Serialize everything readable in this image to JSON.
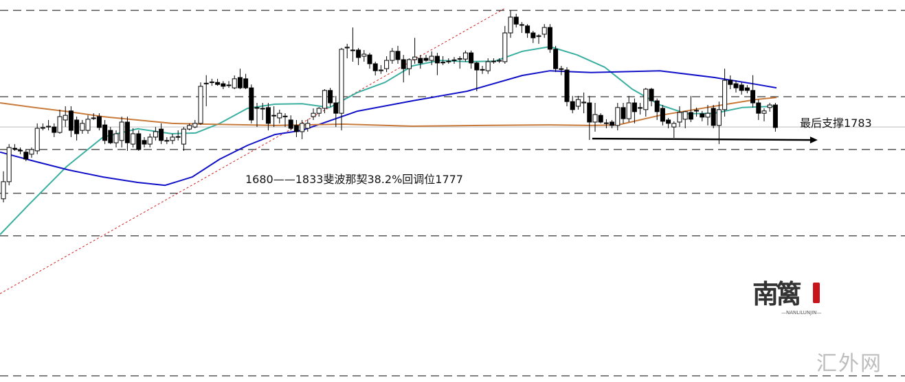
{
  "chart_data": {
    "type": "candlestick",
    "title": "",
    "xlabel": "",
    "ylabel": "",
    "x_units": "candle index",
    "ylim": [
      1690,
      1837
    ],
    "grid": false,
    "colors": {
      "bull_body": "#ffffff",
      "bear_body": "#000000",
      "candle_outline": "#000000",
      "ma_fast": "#3aafa0",
      "ma_slow": "#1010c8",
      "ma_long": "#c87a3a",
      "fib_line": "#d02020",
      "dashed_levels": "#000000",
      "gray_level": "#bdbdbd",
      "support_arrow": "#000000"
    },
    "candles_format": [
      "open",
      "high",
      "low",
      "close"
    ],
    "candles": [
      [
        1760.3,
        1770.9,
        1758.9,
        1766.9
      ],
      [
        1766.9,
        1781.4,
        1765.5,
        1780.1
      ],
      [
        1779.8,
        1781.4,
        1778.8,
        1779.6
      ],
      [
        1779.0,
        1780.1,
        1777.5,
        1778.8
      ],
      [
        1778.3,
        1779.5,
        1774.8,
        1775.6
      ],
      [
        1777.5,
        1780.1,
        1776.1,
        1779.3
      ],
      [
        1778.8,
        1789.4,
        1777.5,
        1787.5
      ],
      [
        1787.5,
        1789.4,
        1786.7,
        1787.8
      ],
      [
        1788.0,
        1790.7,
        1786.7,
        1788.3
      ],
      [
        1788.0,
        1789.4,
        1784.1,
        1785.9
      ],
      [
        1785.9,
        1794.7,
        1785.4,
        1792.0
      ],
      [
        1790.7,
        1796.0,
        1788.0,
        1792.5
      ],
      [
        1794.2,
        1796.0,
        1784.1,
        1786.7
      ],
      [
        1790.7,
        1792.0,
        1782.8,
        1785.4
      ],
      [
        1786.7,
        1790.7,
        1785.4,
        1789.4
      ],
      [
        1786.7,
        1792.5,
        1785.4,
        1791.0
      ],
      [
        1791.5,
        1793.3,
        1790.7,
        1791.5
      ],
      [
        1792.0,
        1793.3,
        1786.7,
        1787.8
      ],
      [
        1788.8,
        1790.7,
        1781.4,
        1782.8
      ],
      [
        1786.7,
        1788.0,
        1781.4,
        1781.9
      ],
      [
        1781.9,
        1786.7,
        1780.1,
        1785.4
      ],
      [
        1782.8,
        1792.0,
        1780.1,
        1789.9
      ],
      [
        1789.9,
        1792.0,
        1778.8,
        1781.9
      ],
      [
        1781.4,
        1787.5,
        1780.1,
        1785.4
      ],
      [
        1785.4,
        1786.7,
        1778.8,
        1779.3
      ],
      [
        1782.8,
        1784.1,
        1780.1,
        1781.4
      ],
      [
        1781.4,
        1785.4,
        1780.1,
        1784.1
      ],
      [
        1784.1,
        1788.0,
        1782.8,
        1786.2
      ],
      [
        1787.2,
        1789.4,
        1781.4,
        1782.8
      ],
      [
        1782.8,
        1784.1,
        1781.4,
        1782.6
      ],
      [
        1782.8,
        1785.4,
        1781.4,
        1784.1
      ],
      [
        1784.1,
        1786.7,
        1782.8,
        1784.3
      ],
      [
        1781.4,
        1788.0,
        1778.8,
        1787.2
      ],
      [
        1787.2,
        1789.4,
        1786.7,
        1788.6
      ],
      [
        1788.0,
        1790.7,
        1787.5,
        1789.4
      ],
      [
        1789.4,
        1805.2,
        1788.8,
        1803.7
      ],
      [
        1804.7,
        1808.0,
        1796.0,
        1804.9
      ],
      [
        1805.2,
        1806.6,
        1803.9,
        1805.4
      ],
      [
        1805.2,
        1806.6,
        1803.9,
        1804.4
      ],
      [
        1804.7,
        1805.7,
        1802.6,
        1803.7
      ],
      [
        1804.2,
        1805.7,
        1803.1,
        1804.0
      ],
      [
        1803.1,
        1807.9,
        1802.6,
        1806.6
      ],
      [
        1807.1,
        1810.5,
        1802.6,
        1803.1
      ],
      [
        1806.6,
        1808.5,
        1802.6,
        1803.1
      ],
      [
        1803.1,
        1804.4,
        1789.4,
        1790.7
      ],
      [
        1795.5,
        1797.3,
        1788.0,
        1795.2
      ],
      [
        1795.2,
        1797.3,
        1790.7,
        1795.0
      ],
      [
        1795.5,
        1797.3,
        1786.7,
        1789.4
      ],
      [
        1792.5,
        1796.0,
        1788.0,
        1792.3
      ],
      [
        1791.5,
        1794.7,
        1789.4,
        1793.3
      ],
      [
        1792.0,
        1793.3,
        1788.0,
        1792.2
      ],
      [
        1790.7,
        1792.5,
        1786.7,
        1787.5
      ],
      [
        1788.6,
        1790.7,
        1784.1,
        1786.2
      ],
      [
        1786.2,
        1790.7,
        1783.3,
        1789.4
      ],
      [
        1787.5,
        1791.0,
        1786.2,
        1789.4
      ],
      [
        1792.0,
        1795.2,
        1790.7,
        1793.3
      ],
      [
        1793.3,
        1795.7,
        1792.0,
        1795.2
      ],
      [
        1795.2,
        1802.6,
        1793.3,
        1802.1
      ],
      [
        1802.1,
        1803.1,
        1795.7,
        1797.3
      ],
      [
        1797.3,
        1800.0,
        1788.0,
        1793.3
      ],
      [
        1793.3,
        1818.5,
        1786.7,
        1818.0
      ],
      [
        1818.5,
        1820.1,
        1814.5,
        1818.8
      ],
      [
        1817.7,
        1826.4,
        1813.2,
        1817.5
      ],
      [
        1817.7,
        1818.5,
        1811.9,
        1814.8
      ],
      [
        1815.3,
        1817.7,
        1813.2,
        1816.1
      ],
      [
        1815.8,
        1816.6,
        1810.5,
        1812.4
      ],
      [
        1812.4,
        1813.2,
        1807.9,
        1809.7
      ],
      [
        1809.7,
        1811.9,
        1808.5,
        1810.0
      ],
      [
        1810.5,
        1815.3,
        1809.2,
        1813.7
      ],
      [
        1813.7,
        1818.5,
        1812.4,
        1817.2
      ],
      [
        1817.2,
        1819.3,
        1812.4,
        1814.0
      ],
      [
        1814.0,
        1815.8,
        1805.2,
        1810.5
      ],
      [
        1810.5,
        1814.5,
        1808.0,
        1814.0
      ],
      [
        1814.0,
        1822.4,
        1812.4,
        1815.0
      ],
      [
        1814.5,
        1815.8,
        1810.5,
        1812.7
      ],
      [
        1814.5,
        1815.8,
        1813.2,
        1813.7
      ],
      [
        1813.7,
        1817.2,
        1811.9,
        1815.3
      ],
      [
        1815.3,
        1816.6,
        1808.0,
        1812.7
      ],
      [
        1812.9,
        1815.3,
        1811.9,
        1813.0
      ],
      [
        1813.2,
        1814.5,
        1812.4,
        1813.4
      ],
      [
        1813.7,
        1815.0,
        1812.4,
        1813.9
      ],
      [
        1814.2,
        1815.3,
        1810.5,
        1814.4
      ],
      [
        1814.2,
        1817.5,
        1813.2,
        1816.6
      ],
      [
        1816.6,
        1817.5,
        1810.5,
        1812.7
      ],
      [
        1812.7,
        1813.2,
        1801.8,
        1810.0
      ],
      [
        1810.0,
        1811.6,
        1808.5,
        1810.2
      ],
      [
        1809.7,
        1814.5,
        1808.5,
        1813.2
      ],
      [
        1813.2,
        1814.5,
        1812.4,
        1813.4
      ],
      [
        1813.4,
        1814.5,
        1812.7,
        1813.7
      ],
      [
        1813.2,
        1827.0,
        1812.4,
        1824.3
      ],
      [
        1824.3,
        1833.0,
        1822.4,
        1830.4
      ],
      [
        1830.4,
        1831.7,
        1826.4,
        1827.7
      ],
      [
        1827.5,
        1828.5,
        1824.3,
        1827.4
      ],
      [
        1827.0,
        1827.7,
        1822.4,
        1824.3
      ],
      [
        1824.3,
        1825.1,
        1820.4,
        1822.4
      ],
      [
        1823.0,
        1823.8,
        1820.1,
        1823.2
      ],
      [
        1823.8,
        1827.7,
        1822.4,
        1826.4
      ],
      [
        1826.4,
        1827.7,
        1816.6,
        1818.0
      ],
      [
        1818.0,
        1819.3,
        1809.2,
        1810.5
      ],
      [
        1810.5,
        1811.6,
        1808.0,
        1810.2
      ],
      [
        1810.0,
        1811.1,
        1796.0,
        1797.8
      ],
      [
        1797.8,
        1800.0,
        1793.3,
        1794.7
      ],
      [
        1796.0,
        1800.0,
        1794.7,
        1798.6
      ],
      [
        1797.3,
        1801.3,
        1793.3,
        1797.6
      ],
      [
        1797.3,
        1800.0,
        1783.0,
        1789.9
      ],
      [
        1789.9,
        1797.3,
        1786.2,
        1792.8
      ],
      [
        1792.5,
        1793.3,
        1789.4,
        1789.9
      ],
      [
        1789.4,
        1791.0,
        1787.5,
        1789.6
      ],
      [
        1789.9,
        1790.7,
        1787.5,
        1788.6
      ],
      [
        1788.6,
        1797.3,
        1786.7,
        1795.5
      ],
      [
        1795.5,
        1797.3,
        1789.4,
        1791.2
      ],
      [
        1791.2,
        1800.0,
        1789.9,
        1797.3
      ],
      [
        1797.3,
        1799.0,
        1789.4,
        1793.9
      ],
      [
        1795.5,
        1797.3,
        1792.8,
        1795.2
      ],
      [
        1794.7,
        1803.1,
        1792.0,
        1802.6
      ],
      [
        1802.6,
        1803.1,
        1796.0,
        1798.1
      ],
      [
        1798.1,
        1799.0,
        1790.7,
        1793.9
      ],
      [
        1795.2,
        1796.5,
        1788.6,
        1790.2
      ],
      [
        1790.7,
        1791.5,
        1787.5,
        1789.4
      ],
      [
        1788.0,
        1790.2,
        1783.8,
        1789.4
      ],
      [
        1789.9,
        1796.0,
        1788.0,
        1793.6
      ],
      [
        1791.0,
        1794.2,
        1787.5,
        1793.9
      ],
      [
        1793.6,
        1800.0,
        1789.9,
        1791.0
      ],
      [
        1794.2,
        1795.5,
        1792.0,
        1794.4
      ],
      [
        1793.1,
        1794.2,
        1790.2,
        1791.8
      ],
      [
        1791.8,
        1796.5,
        1788.6,
        1793.3
      ],
      [
        1795.2,
        1796.5,
        1787.5,
        1788.6
      ],
      [
        1788.6,
        1797.8,
        1781.4,
        1794.7
      ],
      [
        1794.7,
        1810.5,
        1792.0,
        1806.0
      ],
      [
        1806.0,
        1807.9,
        1802.6,
        1804.4
      ],
      [
        1804.7,
        1806.0,
        1801.3,
        1803.1
      ],
      [
        1804.2,
        1805.2,
        1800.5,
        1802.1
      ],
      [
        1803.1,
        1804.2,
        1801.0,
        1802.1
      ],
      [
        1802.1,
        1808.0,
        1795.5,
        1797.3
      ],
      [
        1797.3,
        1798.6,
        1790.7,
        1793.3
      ],
      [
        1793.3,
        1795.2,
        1790.2,
        1794.2
      ],
      [
        1795.5,
        1797.3,
        1793.9,
        1796.5
      ],
      [
        1796.5,
        1797.3,
        1786.2,
        1787.8
      ]
    ],
    "moving_averages": [
      {
        "color_key": "ma_fast",
        "points": [
          [
            -0.6,
            1746.5
          ],
          [
            4.3,
            1757.6
          ],
          [
            11.2,
            1772.7
          ],
          [
            17.7,
            1784.1
          ],
          [
            23.8,
            1787.3
          ],
          [
            29.9,
            1785.4
          ],
          [
            34.1,
            1785.7
          ],
          [
            38.4,
            1789.4
          ],
          [
            43.3,
            1795.2
          ],
          [
            48.2,
            1796.8
          ],
          [
            53.0,
            1797.0
          ],
          [
            57.9,
            1795.5
          ],
          [
            62.8,
            1801.3
          ],
          [
            67.7,
            1805.2
          ],
          [
            72.6,
            1811.6
          ],
          [
            77.4,
            1813.7
          ],
          [
            82.3,
            1813.2
          ],
          [
            87.2,
            1813.4
          ],
          [
            92.1,
            1817.2
          ],
          [
            97.0,
            1819.0
          ],
          [
            101.8,
            1815.8
          ],
          [
            106.7,
            1811.1
          ],
          [
            111.6,
            1802.6
          ],
          [
            116.5,
            1796.5
          ],
          [
            121.3,
            1793.1
          ],
          [
            126.2,
            1793.3
          ],
          [
            131.1,
            1795.5
          ],
          [
            137.2,
            1796.0
          ]
        ]
      },
      {
        "color_key": "ma_slow",
        "points": [
          [
            -0.6,
            1778.3
          ],
          [
            5.5,
            1774.8
          ],
          [
            11.6,
            1771.4
          ],
          [
            17.7,
            1768.7
          ],
          [
            23.8,
            1766.6
          ],
          [
            28.7,
            1765.5
          ],
          [
            33.5,
            1768.7
          ],
          [
            38.4,
            1775.6
          ],
          [
            43.3,
            1780.9
          ],
          [
            48.2,
            1785.1
          ],
          [
            53.0,
            1786.7
          ],
          [
            62.8,
            1794.1
          ],
          [
            72.6,
            1798.1
          ],
          [
            82.3,
            1801.8
          ],
          [
            92.1,
            1807.9
          ],
          [
            97.0,
            1809.7
          ],
          [
            104.3,
            1809.0
          ],
          [
            116.5,
            1809.7
          ],
          [
            126.2,
            1807.1
          ],
          [
            133.5,
            1804.5
          ],
          [
            137.2,
            1803.1
          ]
        ]
      },
      {
        "color_key": "ma_long",
        "points": [
          [
            -0.6,
            1797.3
          ],
          [
            5.5,
            1795.5
          ],
          [
            11.6,
            1793.9
          ],
          [
            17.7,
            1792.0
          ],
          [
            23.8,
            1790.7
          ],
          [
            29.9,
            1789.4
          ],
          [
            36.0,
            1789.1
          ],
          [
            48.2,
            1788.6
          ],
          [
            60.4,
            1789.1
          ],
          [
            72.6,
            1788.3
          ],
          [
            84.8,
            1788.6
          ],
          [
            97.0,
            1788.8
          ],
          [
            104.3,
            1788.6
          ],
          [
            109.1,
            1788.8
          ],
          [
            116.5,
            1792.5
          ],
          [
            126.2,
            1796.0
          ],
          [
            133.5,
            1798.6
          ],
          [
            137.2,
            1799.4
          ]
        ]
      }
    ],
    "dashed_levels": [
      1833.0,
      1799.7,
      1779.3,
      1762.4,
      1746.0,
      1692.0
    ],
    "gray_level": 1788.0,
    "fib_trendline": {
      "from": [
        -0.6,
        1723.7
      ],
      "to": [
        89.0,
        1833.8
      ]
    },
    "support_arrow": {
      "price": 1783,
      "from_index": 104.5,
      "to_index": 144.5
    },
    "annotations": {
      "fib_text": "1680——1833斐波那契38.2%回调位1777",
      "support_text": "最后支撑1783"
    }
  },
  "branding": {
    "logo_text": "南篱",
    "logo_subtext": "—NANLILUNJIN—",
    "watermark": "汇外网"
  }
}
